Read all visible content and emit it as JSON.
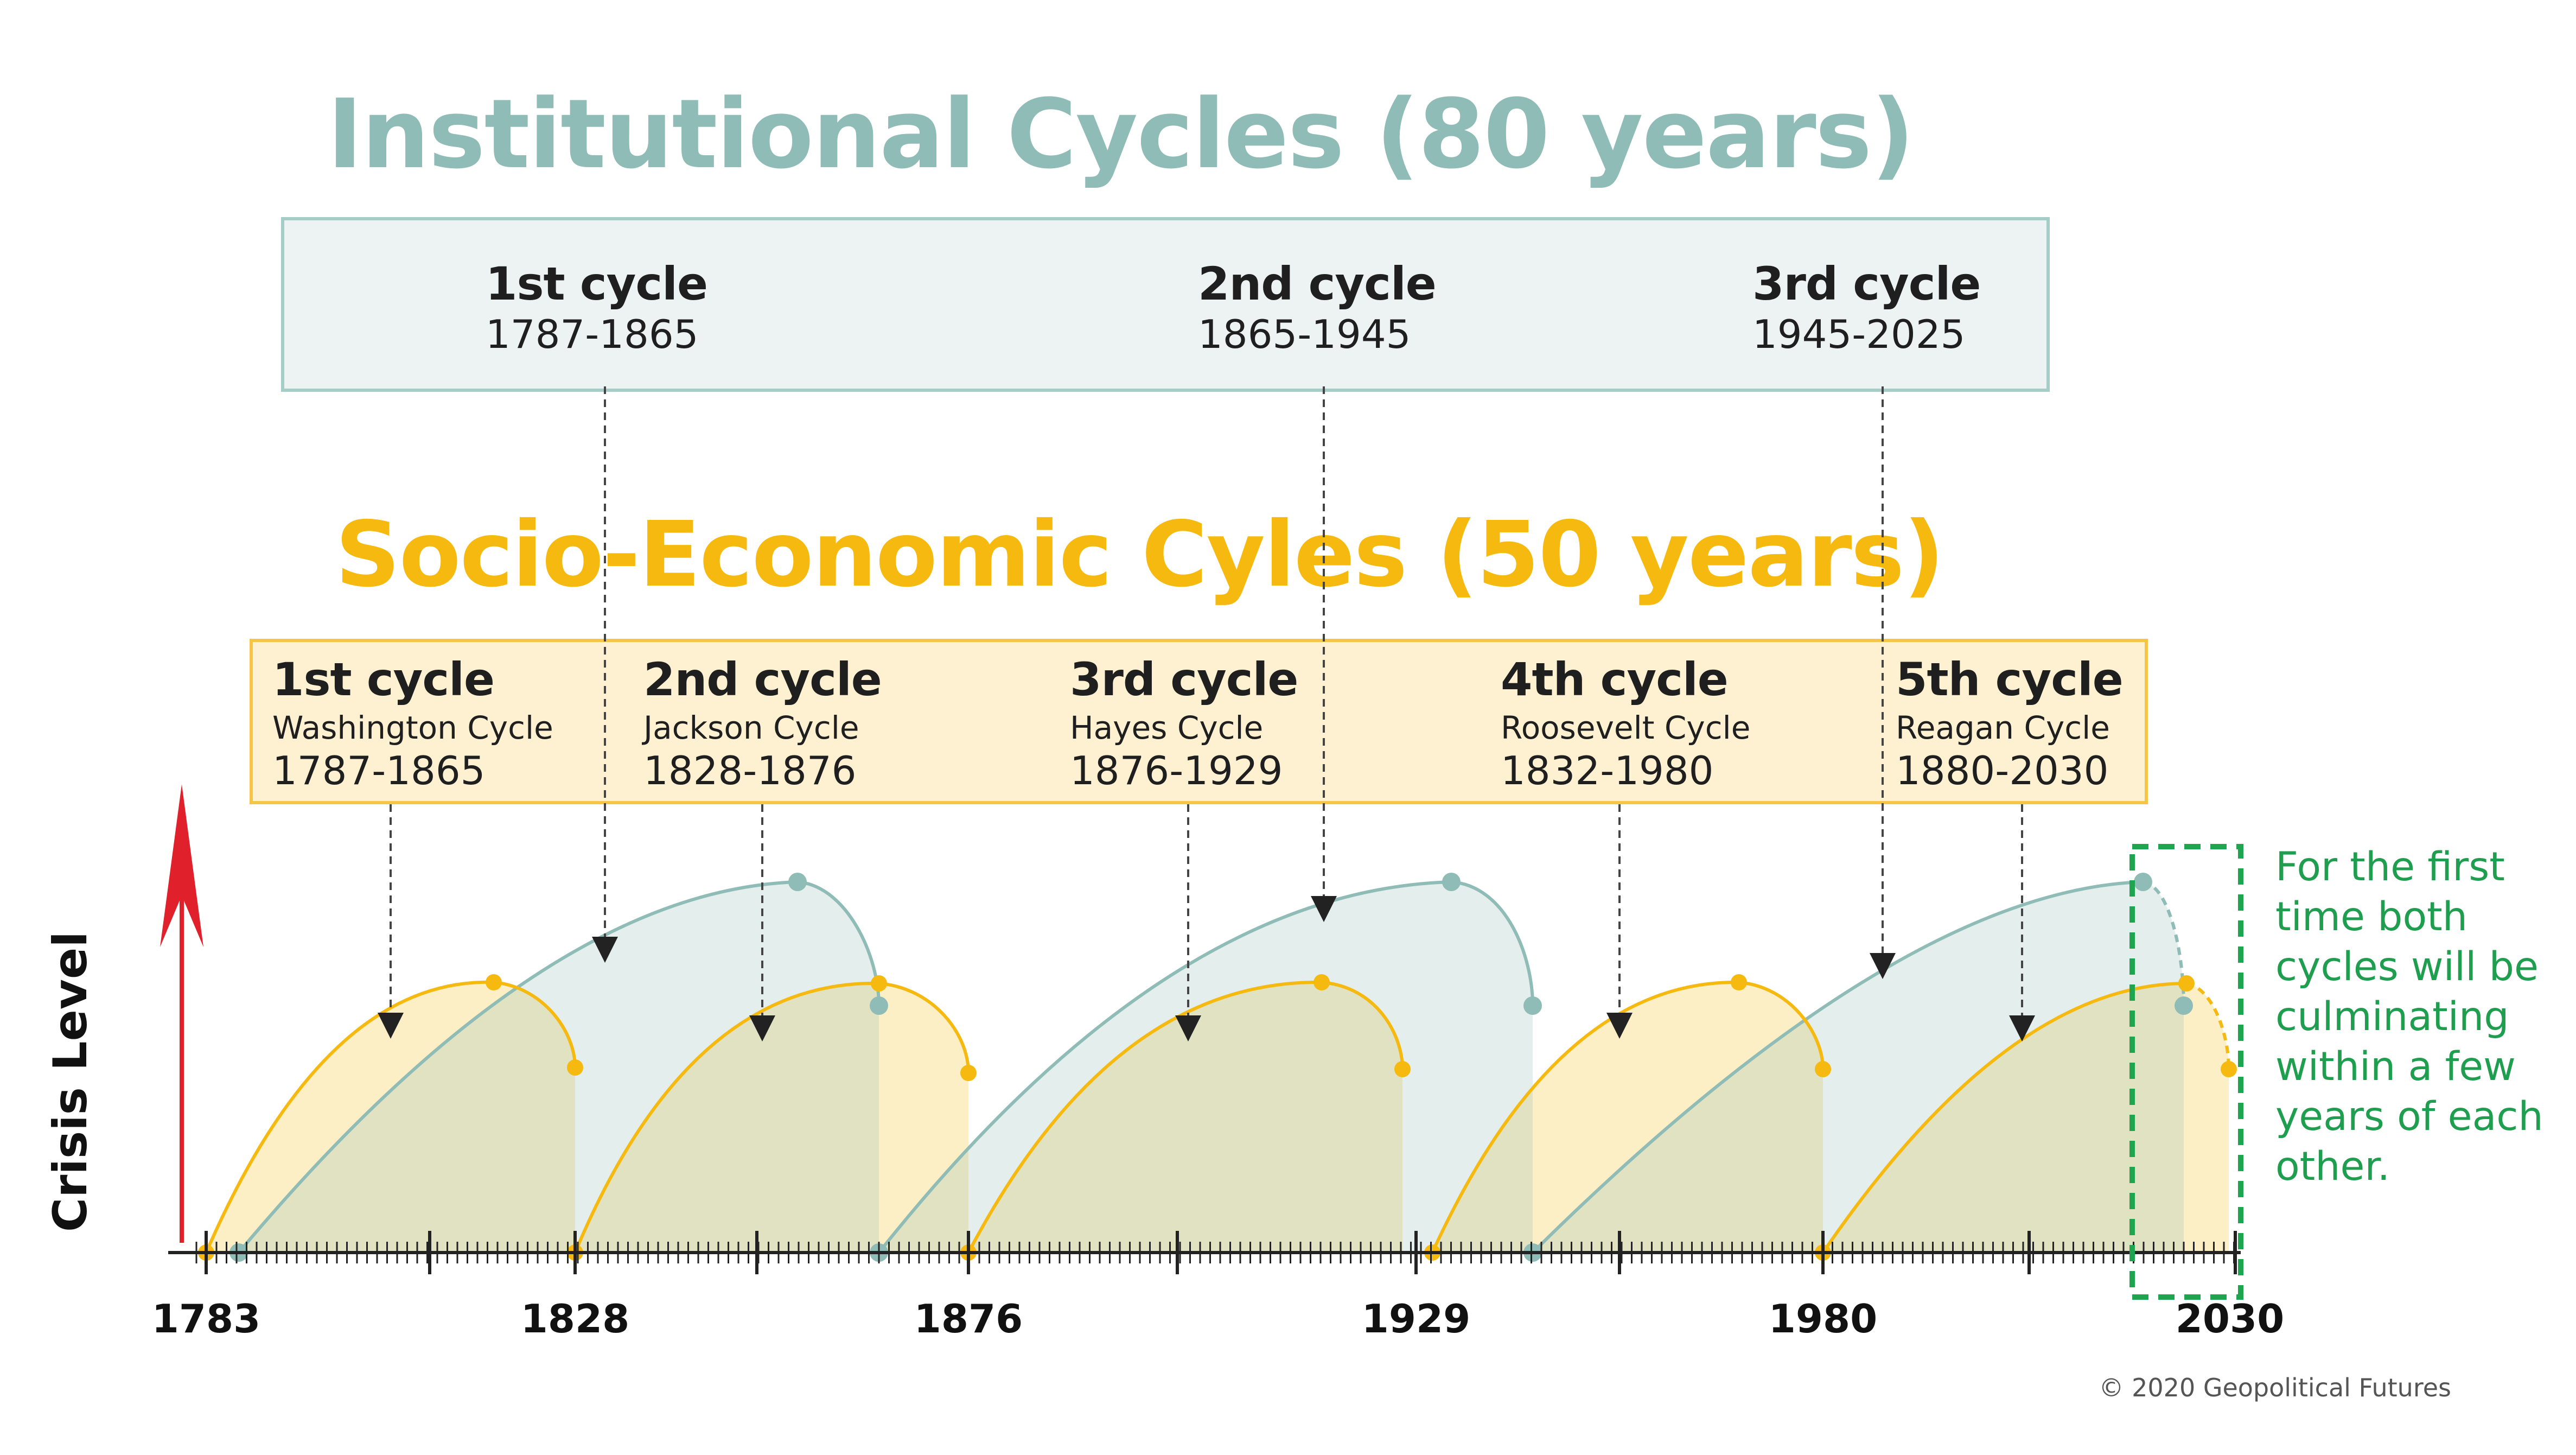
{
  "institutional": {
    "title": "Institutional Cycles (80 years)",
    "cycles": [
      {
        "name": "1st cycle",
        "years": "1787-1865",
        "start": 1787,
        "end": 1865
      },
      {
        "name": "2nd cycle",
        "years": "1865-1945",
        "start": 1865,
        "end": 1945
      },
      {
        "name": "3rd cycle",
        "years": "1945-2025",
        "start": 1945,
        "end": 2025
      }
    ],
    "color": "#8fbcb6"
  },
  "socio_economic": {
    "title": "Socio-Economic Cyles (50 years)",
    "cycles": [
      {
        "name": "1st cycle",
        "president": "Washington Cycle",
        "years": "1787-1865"
      },
      {
        "name": "2nd cycle",
        "president": "Jackson Cycle",
        "years": "1828-1876"
      },
      {
        "name": "3rd cycle",
        "president": "Hayes Cycle",
        "years": "1876-1929"
      },
      {
        "name": "4th cycle",
        "president": "Roosevelt Cycle",
        "years": "1832-1980"
      },
      {
        "name": "5th cycle",
        "president": "Reagan Cycle",
        "years": "1880-2030"
      }
    ],
    "color": "#f5b90f"
  },
  "y_axis_label": "Crisis Level",
  "x_axis": {
    "ticks": [
      "1783",
      "1828",
      "1876",
      "1929",
      "1980",
      "2030"
    ],
    "range": [
      1783,
      2030
    ]
  },
  "note": "For the first time both cycles will be culminating within a few years of each other.",
  "copyright": "© 2020 Geopolitical Futures",
  "colors": {
    "institutional": "#8fbcb6",
    "socio_economic": "#f5b90f",
    "arrow": "#e0202a",
    "highlight": "#1fa550"
  }
}
